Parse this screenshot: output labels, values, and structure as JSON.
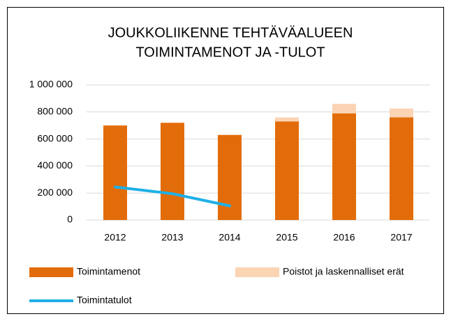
{
  "chart_data": {
    "type": "bar",
    "title": [
      "JOUKKOLIIKENNE TEHTÄVÄALUEEN",
      "TOIMINTAMENOT  JA -TULOT"
    ],
    "categories": [
      "2012",
      "2013",
      "2014",
      "2015",
      "2016",
      "2017"
    ],
    "series": [
      {
        "name": "Toimintamenot",
        "color": "#e36c0a",
        "stacked": true,
        "values": [
          700000,
          720000,
          630000,
          730000,
          790000,
          760000
        ]
      },
      {
        "name": "Poistot ja laskennalliset erät",
        "color": "#fbd4b4",
        "stacked": true,
        "values": [
          0,
          0,
          0,
          30000,
          70000,
          65000
        ]
      },
      {
        "name": "Toimintatulot",
        "color": "#1fb0e6",
        "type": "line",
        "values": [
          245000,
          195000,
          105000,
          null,
          null,
          null
        ]
      }
    ],
    "ylim": [
      0,
      1000000
    ],
    "yticks": [
      0,
      {
        "value": 200000,
        "label": "200 000"
      },
      {
        "value": 400000,
        "label": "400 000"
      },
      {
        "value": 600000,
        "label": "600 000"
      },
      {
        "value": 800000,
        "label": "800 000"
      },
      {
        "value": 1000000,
        "label": "1 000 000"
      }
    ],
    "grid": true
  }
}
